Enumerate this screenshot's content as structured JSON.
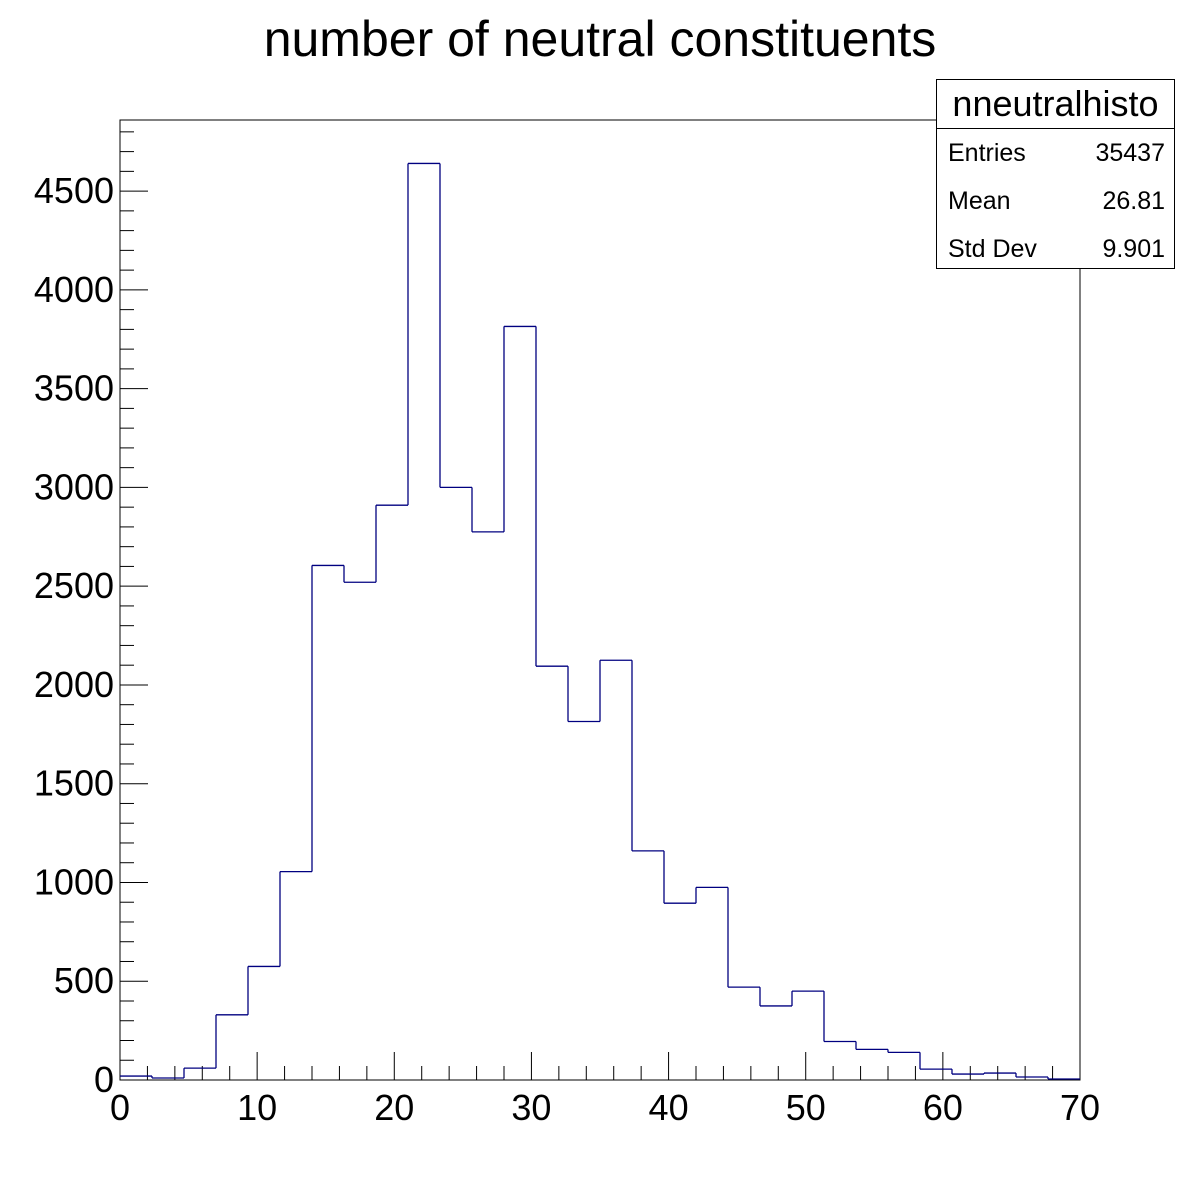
{
  "chart_data": {
    "type": "bar",
    "title": "number of neutral constituents",
    "xlabel": "",
    "ylabel": "",
    "xlim": [
      0,
      70
    ],
    "ylim": [
      0,
      4860
    ],
    "bin_width": 2.33333,
    "bin_edges_start": 0,
    "values": [
      20,
      10,
      60,
      330,
      575,
      1055,
      2605,
      2520,
      2910,
      4640,
      3000,
      2775,
      3815,
      2095,
      1815,
      2125,
      1160,
      895,
      975,
      470,
      375,
      450,
      195,
      155,
      140,
      55,
      30,
      35,
      15,
      5
    ],
    "x_ticks": [
      "0",
      "10",
      "20",
      "30",
      "40",
      "50",
      "60",
      "70"
    ],
    "y_ticks": [
      "0",
      "500",
      "1000",
      "1500",
      "2000",
      "2500",
      "3000",
      "3500",
      "4000",
      "4500"
    ],
    "line_color": "#000080",
    "grid": false,
    "legend": "none"
  },
  "stats": {
    "name": "nneutralhisto",
    "rows": [
      {
        "label": "Entries",
        "value": "35437"
      },
      {
        "label": "Mean",
        "value": "26.81"
      },
      {
        "label": "Std Dev",
        "value": "9.901"
      }
    ]
  }
}
